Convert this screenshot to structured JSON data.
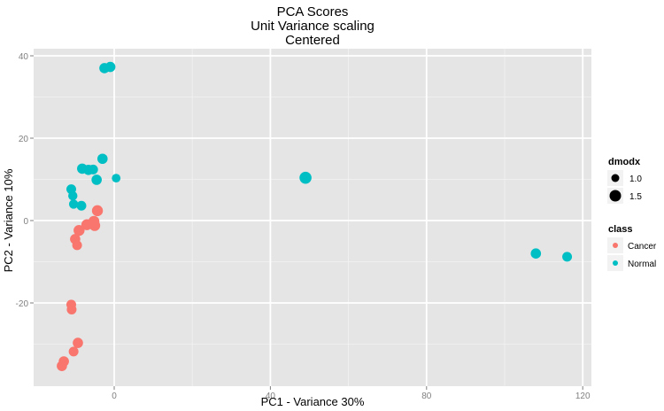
{
  "chart_data": {
    "type": "scatter",
    "title": [
      "PCA Scores",
      "Unit Variance scaling",
      "Centered"
    ],
    "xlabel": "PC1 - Variance 30%",
    "ylabel": "PC2 - Variance 10%",
    "xlim": [
      -20,
      122
    ],
    "ylim": [
      -40,
      42
    ],
    "xticks": [
      0,
      40,
      80,
      120
    ],
    "yticks": [
      -20,
      0,
      20,
      40
    ],
    "grid": true,
    "legend_position": "right",
    "size_legend": {
      "title": "dmodx",
      "entries": [
        "1.0",
        "1.5"
      ]
    },
    "color_legend": {
      "title": "class",
      "entries": [
        {
          "name": "Cancer",
          "color": "#F8766D"
        },
        {
          "name": "Normal",
          "color": "#00BFC4"
        }
      ]
    },
    "series": [
      {
        "name": "Cancer",
        "color": "#F8766D",
        "points": [
          {
            "x": -4.3,
            "y": 2.4,
            "dmodx": 1.3
          },
          {
            "x": -5.2,
            "y": -0.2,
            "dmodx": 1.3
          },
          {
            "x": -5.0,
            "y": -1.2,
            "dmodx": 1.3
          },
          {
            "x": -7.0,
            "y": -1.0,
            "dmodx": 1.3
          },
          {
            "x": -9.0,
            "y": -2.4,
            "dmodx": 1.3
          },
          {
            "x": -10.0,
            "y": -4.5,
            "dmodx": 1.2
          },
          {
            "x": -9.5,
            "y": -6.0,
            "dmodx": 1.1
          },
          {
            "x": -11.0,
            "y": -20.4,
            "dmodx": 1.1
          },
          {
            "x": -10.9,
            "y": -21.6,
            "dmodx": 1.1
          },
          {
            "x": -9.3,
            "y": -29.7,
            "dmodx": 1.2
          },
          {
            "x": -10.4,
            "y": -31.8,
            "dmodx": 1.1
          },
          {
            "x": -12.9,
            "y": -34.2,
            "dmodx": 1.2
          },
          {
            "x": -13.4,
            "y": -35.3,
            "dmodx": 1.2
          }
        ]
      },
      {
        "name": "Normal",
        "color": "#00BFC4",
        "points": [
          {
            "x": -2.5,
            "y": 37.0,
            "dmodx": 1.2
          },
          {
            "x": -1.0,
            "y": 37.3,
            "dmodx": 1.2
          },
          {
            "x": -3.0,
            "y": 15.0,
            "dmodx": 1.2
          },
          {
            "x": -8.2,
            "y": 12.6,
            "dmodx": 1.2
          },
          {
            "x": -6.6,
            "y": 12.3,
            "dmodx": 1.2
          },
          {
            "x": -5.4,
            "y": 12.4,
            "dmodx": 1.1
          },
          {
            "x": -4.5,
            "y": 9.9,
            "dmodx": 1.2
          },
          {
            "x": 0.5,
            "y": 10.3,
            "dmodx": 0.9
          },
          {
            "x": -11.0,
            "y": 7.6,
            "dmodx": 1.1
          },
          {
            "x": -10.6,
            "y": 6.0,
            "dmodx": 1.0
          },
          {
            "x": -10.4,
            "y": 4.0,
            "dmodx": 1.0
          },
          {
            "x": -8.4,
            "y": 3.6,
            "dmodx": 1.1
          },
          {
            "x": 49.0,
            "y": 10.4,
            "dmodx": 1.5
          },
          {
            "x": 108.0,
            "y": -8.0,
            "dmodx": 1.2
          },
          {
            "x": 116.0,
            "y": -8.8,
            "dmodx": 1.1
          }
        ]
      }
    ]
  }
}
